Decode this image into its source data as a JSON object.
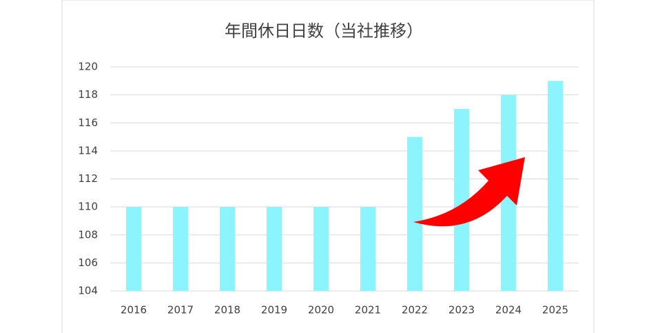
{
  "chart_data": {
    "type": "bar",
    "title": "年間休日日数（当社推移）",
    "categories": [
      "2016",
      "2017",
      "2018",
      "2019",
      "2020",
      "2021",
      "2022",
      "2023",
      "2024",
      "2025"
    ],
    "values": [
      110,
      110,
      110,
      110,
      110,
      110,
      115,
      117,
      118,
      119
    ],
    "color": "#8cf4fc",
    "ylim": [
      104,
      120
    ],
    "yticks": [
      104,
      106,
      108,
      110,
      112,
      114,
      116,
      118,
      120
    ],
    "grid": true
  }
}
